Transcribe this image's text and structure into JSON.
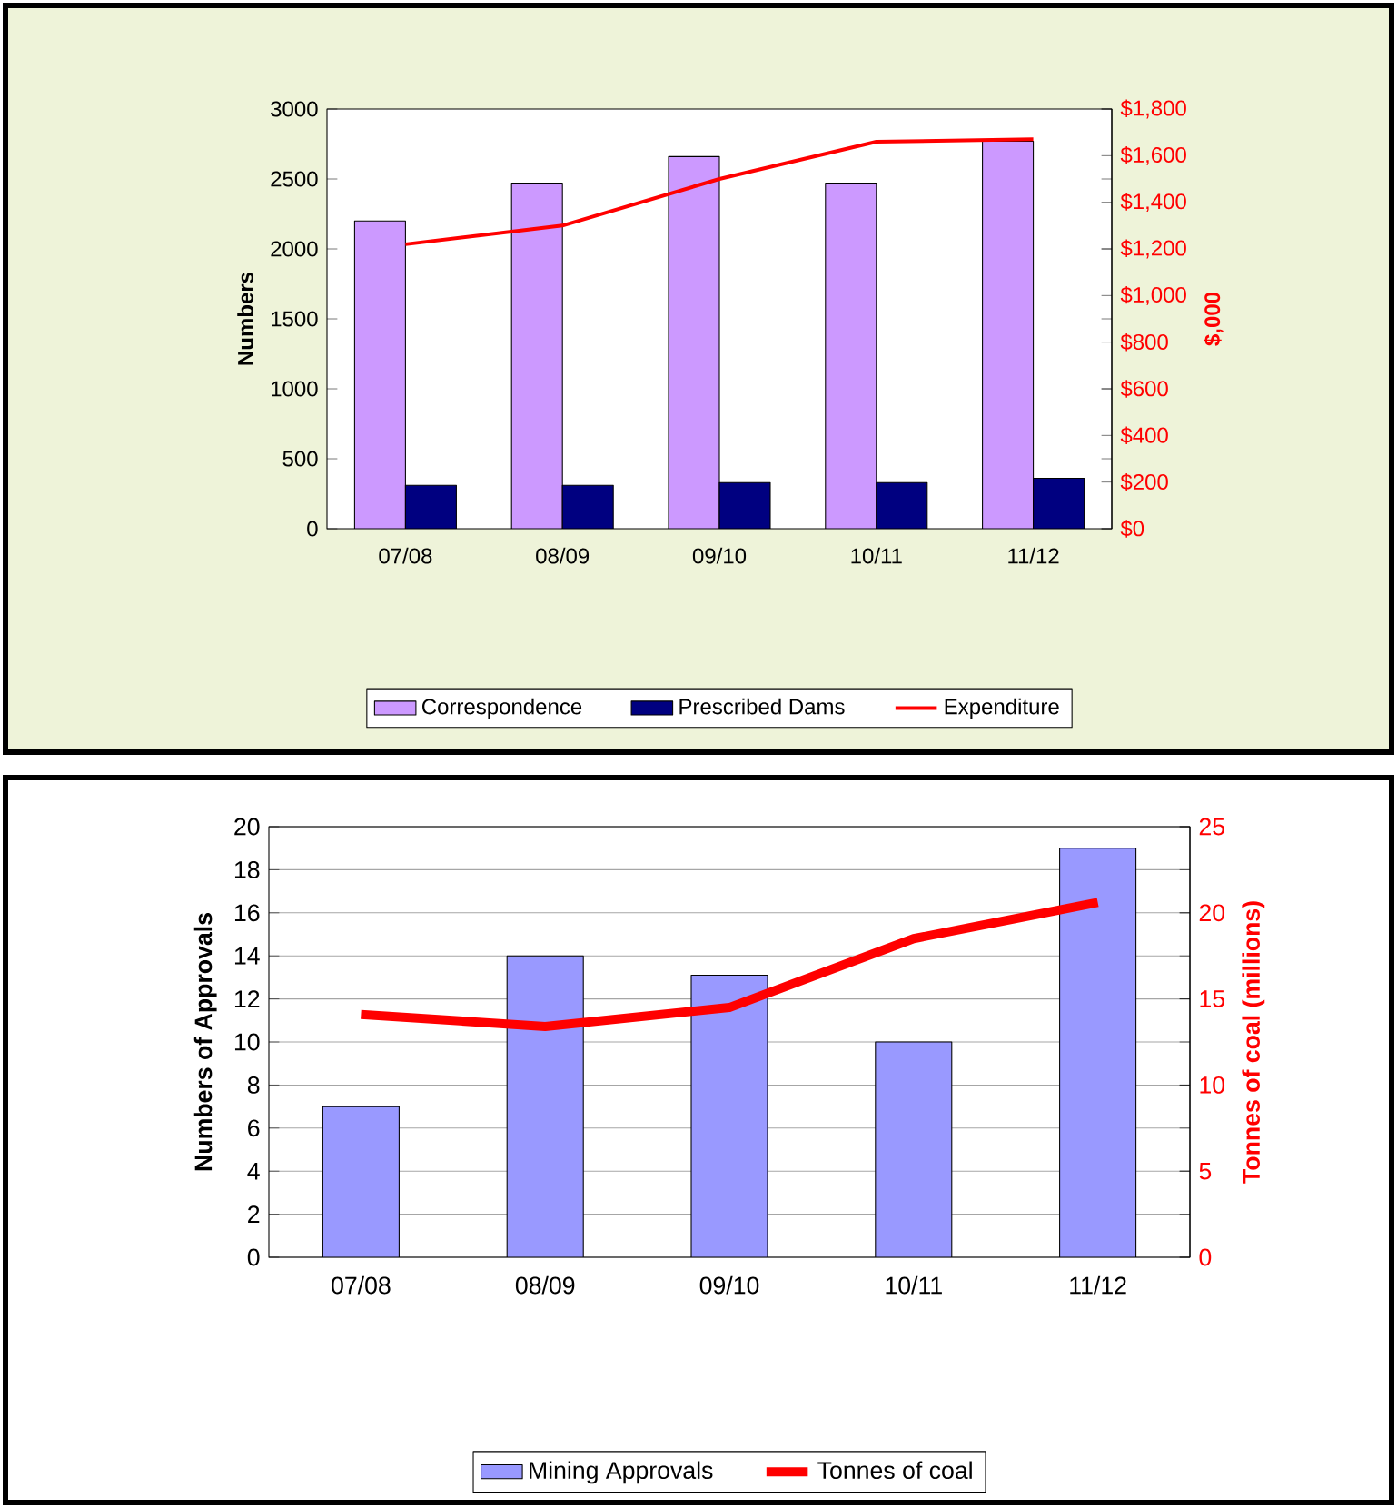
{
  "chart_data": [
    {
      "type": "bar",
      "categories": [
        "07/08",
        "08/09",
        "09/10",
        "10/11",
        "11/12"
      ],
      "ylabel": "Numbers",
      "y2label": "$,000",
      "ylim": [
        0,
        3000
      ],
      "yticks": [
        0,
        500,
        1000,
        1500,
        2000,
        2500,
        3000
      ],
      "y2lim": [
        0,
        1800
      ],
      "y2ticks": [
        {
          "value": 0,
          "label": "$0"
        },
        {
          "value": 200,
          "label": "$200"
        },
        {
          "value": 400,
          "label": "$400"
        },
        {
          "value": 600,
          "label": "$600"
        },
        {
          "value": 800,
          "label": "$800"
        },
        {
          "value": 1000,
          "label": "$1,000"
        },
        {
          "value": 1200,
          "label": "$1,200"
        },
        {
          "value": 1400,
          "label": "$1,400"
        },
        {
          "value": 1600,
          "label": "$1,600"
        },
        {
          "value": 1800,
          "label": "$1,800"
        }
      ],
      "legend": "bottom",
      "marker": "none",
      "series": [
        {
          "name": "Correspondence",
          "color": "#cc99ff",
          "values": [
            2200,
            2470,
            2660,
            2470,
            2770
          ]
        },
        {
          "name": "Prescribed Dams",
          "color": "#000080",
          "values": [
            310,
            310,
            330,
            330,
            360
          ]
        },
        {
          "name": "Expenditure",
          "type": "line",
          "axis": "y2",
          "color": "#ff0000",
          "values": [
            1220,
            1300,
            1500,
            1660,
            1670
          ]
        }
      ]
    },
    {
      "type": "bar",
      "categories": [
        "07/08",
        "08/09",
        "09/10",
        "10/11",
        "11/12"
      ],
      "ylabel": "Numbers of Approvals",
      "y2label": "Tonnes of coal (millions)",
      "ylim": [
        0,
        20
      ],
      "yticks": [
        0,
        2,
        4,
        6,
        8,
        10,
        12,
        14,
        16,
        18,
        20
      ],
      "y2lim": [
        0,
        25
      ],
      "y2ticks": [
        0,
        5,
        10,
        15,
        20,
        25
      ],
      "grid": "y",
      "legend": "bottom",
      "marker": "none",
      "series": [
        {
          "name": "Mining Approvals",
          "color": "#9999ff",
          "values": [
            7,
            14,
            13.1,
            10,
            19
          ]
        },
        {
          "name": "Tonnes of coal",
          "type": "line",
          "axis": "y2",
          "color": "#ff0000",
          "values": [
            14.1,
            13.4,
            14.5,
            18.5,
            20.6
          ]
        }
      ]
    }
  ]
}
